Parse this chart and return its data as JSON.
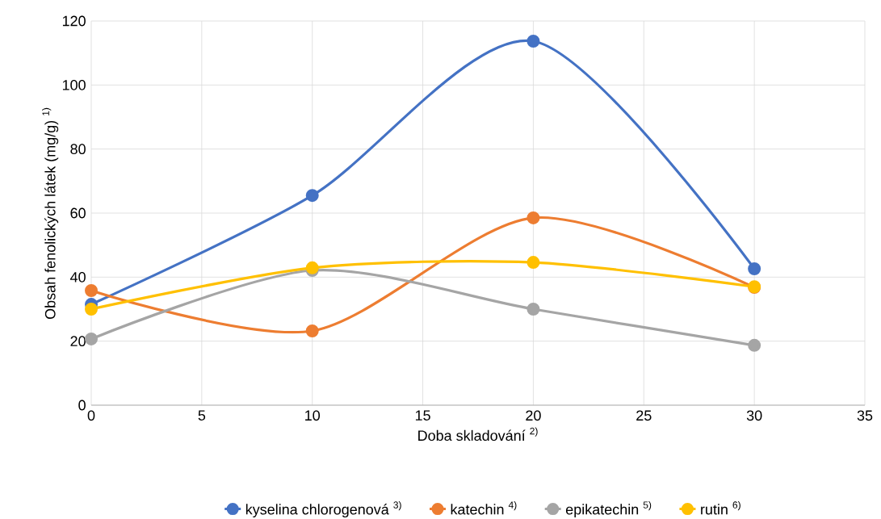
{
  "chart_data": {
    "type": "line",
    "xlabel": "Doba skladování $^{2)}$",
    "ylabel": "Obsah fenolických látek (mg/g) $^{1)}$",
    "x": [
      0,
      10,
      20,
      30
    ],
    "series": [
      {
        "name": "kyselina chlorogenová $^{3)}$",
        "color": "#4472c4",
        "values": [
          31.5,
          65.5,
          113.7,
          42.6
        ]
      },
      {
        "name": "katechin $^{4)}$",
        "color": "#ed7d31",
        "values": [
          35.8,
          23.2,
          58.5,
          36.8
        ]
      },
      {
        "name": "epikatechin $^{5)}$",
        "color": "#a5a5a5",
        "values": [
          20.7,
          42.1,
          30,
          18.7
        ]
      },
      {
        "name": "rutin $^{6)}$",
        "color": "#ffc000",
        "values": [
          30,
          42.9,
          44.6,
          37
        ]
      }
    ],
    "xlim": [
      0,
      35
    ],
    "xticks": [
      0,
      5,
      10,
      15,
      20,
      25,
      30,
      35
    ],
    "ylim": [
      0,
      120
    ],
    "yticks": [
      0,
      20,
      40,
      60,
      80,
      100,
      120
    ],
    "grid": true,
    "legend": "bottom",
    "marker": "circle",
    "line_style": "solid"
  }
}
